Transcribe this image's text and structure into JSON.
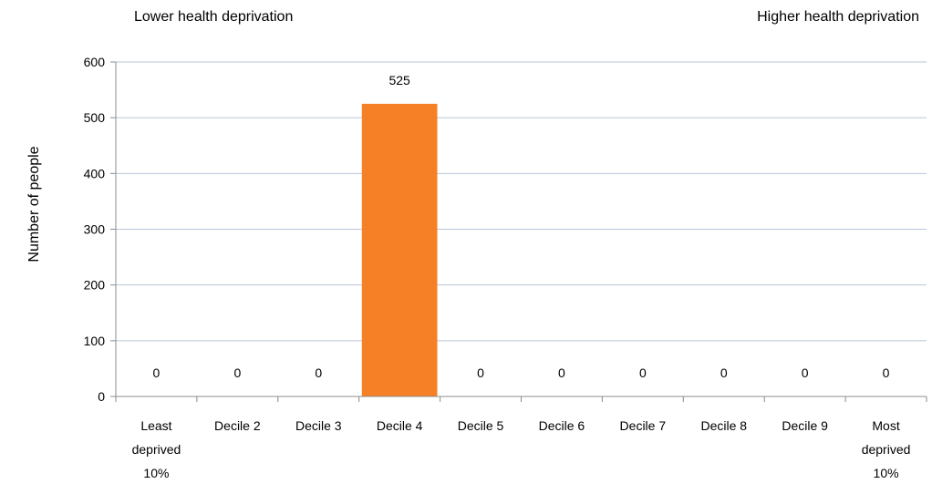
{
  "header": {
    "left_label": "Lower health deprivation",
    "right_label": "Higher health deprivation"
  },
  "chart_data": {
    "type": "bar",
    "ylabel": "Number of people",
    "xlabel": "",
    "ylim": [
      0,
      600
    ],
    "yticks": [
      0,
      100,
      200,
      300,
      400,
      500,
      600
    ],
    "grid": true,
    "categories": [
      [
        "Least",
        "deprived",
        "10%"
      ],
      [
        "Decile 2"
      ],
      [
        "Decile 3"
      ],
      [
        "Decile 4"
      ],
      [
        "Decile 5"
      ],
      [
        "Decile 6"
      ],
      [
        "Decile 7"
      ],
      [
        "Decile 8"
      ],
      [
        "Decile 9"
      ],
      [
        "Most",
        "deprived",
        "10%"
      ]
    ],
    "values": [
      0,
      0,
      0,
      525,
      0,
      0,
      0,
      0,
      0,
      0
    ],
    "data_labels": [
      "0",
      "0",
      "0",
      "525",
      "0",
      "0",
      "0",
      "0",
      "0",
      "0"
    ],
    "bar_color": "#F58025",
    "grid_color": "#B7C6D8",
    "axis_color": "#8C8C8C"
  }
}
